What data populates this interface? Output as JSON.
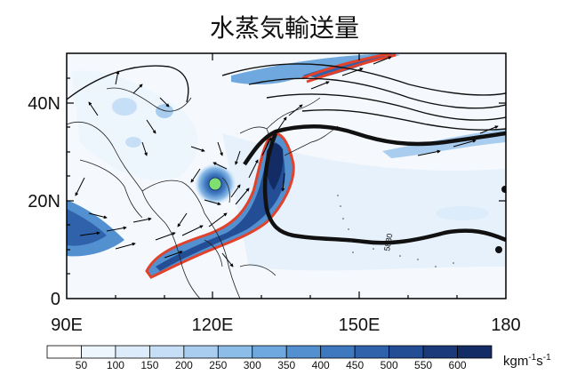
{
  "title": "水蒸気輸送量",
  "lat_labels": [
    "40N",
    "20N",
    "0"
  ],
  "lon_labels": [
    "90E",
    "120E",
    "150E",
    "180"
  ],
  "contour_label": "5880",
  "colorbar": {
    "ticks": [
      "50",
      "100",
      "150",
      "200",
      "250",
      "300",
      "350",
      "400",
      "450",
      "500",
      "550",
      "600"
    ],
    "unit_main": "kgm",
    "unit_sup1": "-1",
    "unit_mid": "s",
    "unit_sup2": "-1",
    "colors": [
      "#ffffff",
      "#eef6fd",
      "#dcecfa",
      "#c6def6",
      "#a9cdef",
      "#8cbce8",
      "#6ea8de",
      "#5290d0",
      "#3e78bf",
      "#2f62ab",
      "#234d95",
      "#1b3a7c",
      "#142c66"
    ]
  }
}
